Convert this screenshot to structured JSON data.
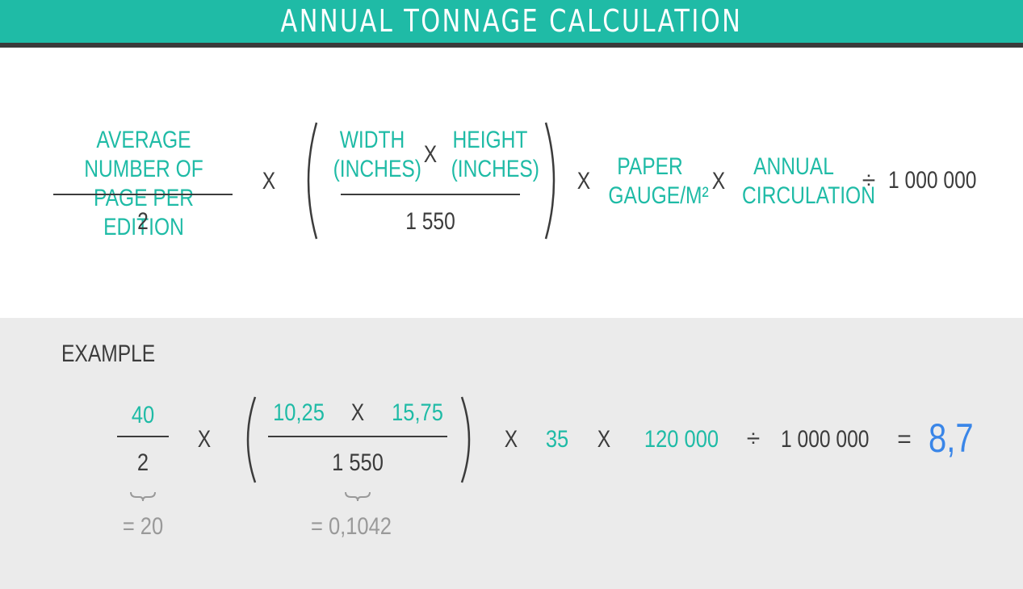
{
  "header": {
    "title": "ANNUAL TONNAGE CALCULATION"
  },
  "formula": {
    "pages_numerator": "AVERAGE NUMBER OF\nPAGE PER EDITION",
    "pages_denominator": "2",
    "times": "X",
    "width": "WIDTH\n(INCHES)",
    "height": "HEIGHT\n(INCHES)",
    "area_denominator": "1 550",
    "paper_gauge": "PAPER\nGAUGE/M²",
    "annual_circulation": "ANNUAL\nCIRCULATION",
    "divide": "÷",
    "divisor": "1 000 000"
  },
  "example": {
    "label": "EXAMPLE",
    "pages_numerator": "40",
    "pages_denominator": "2",
    "pages_result": "= 20",
    "width": "10,25",
    "height": "15,75",
    "area_denominator": "1 550",
    "area_result": "= 0,1042",
    "paper_gauge": "35",
    "annual_circulation": "120 000",
    "divisor": "1 000 000",
    "equals": "=",
    "result": "8,7"
  },
  "colors": {
    "teal": "#1fbba6",
    "dark": "#3c3c3c",
    "gray": "#999999",
    "blue": "#3a86e8",
    "panel": "#ebebeb",
    "header_bar": "#3a3a3a"
  }
}
